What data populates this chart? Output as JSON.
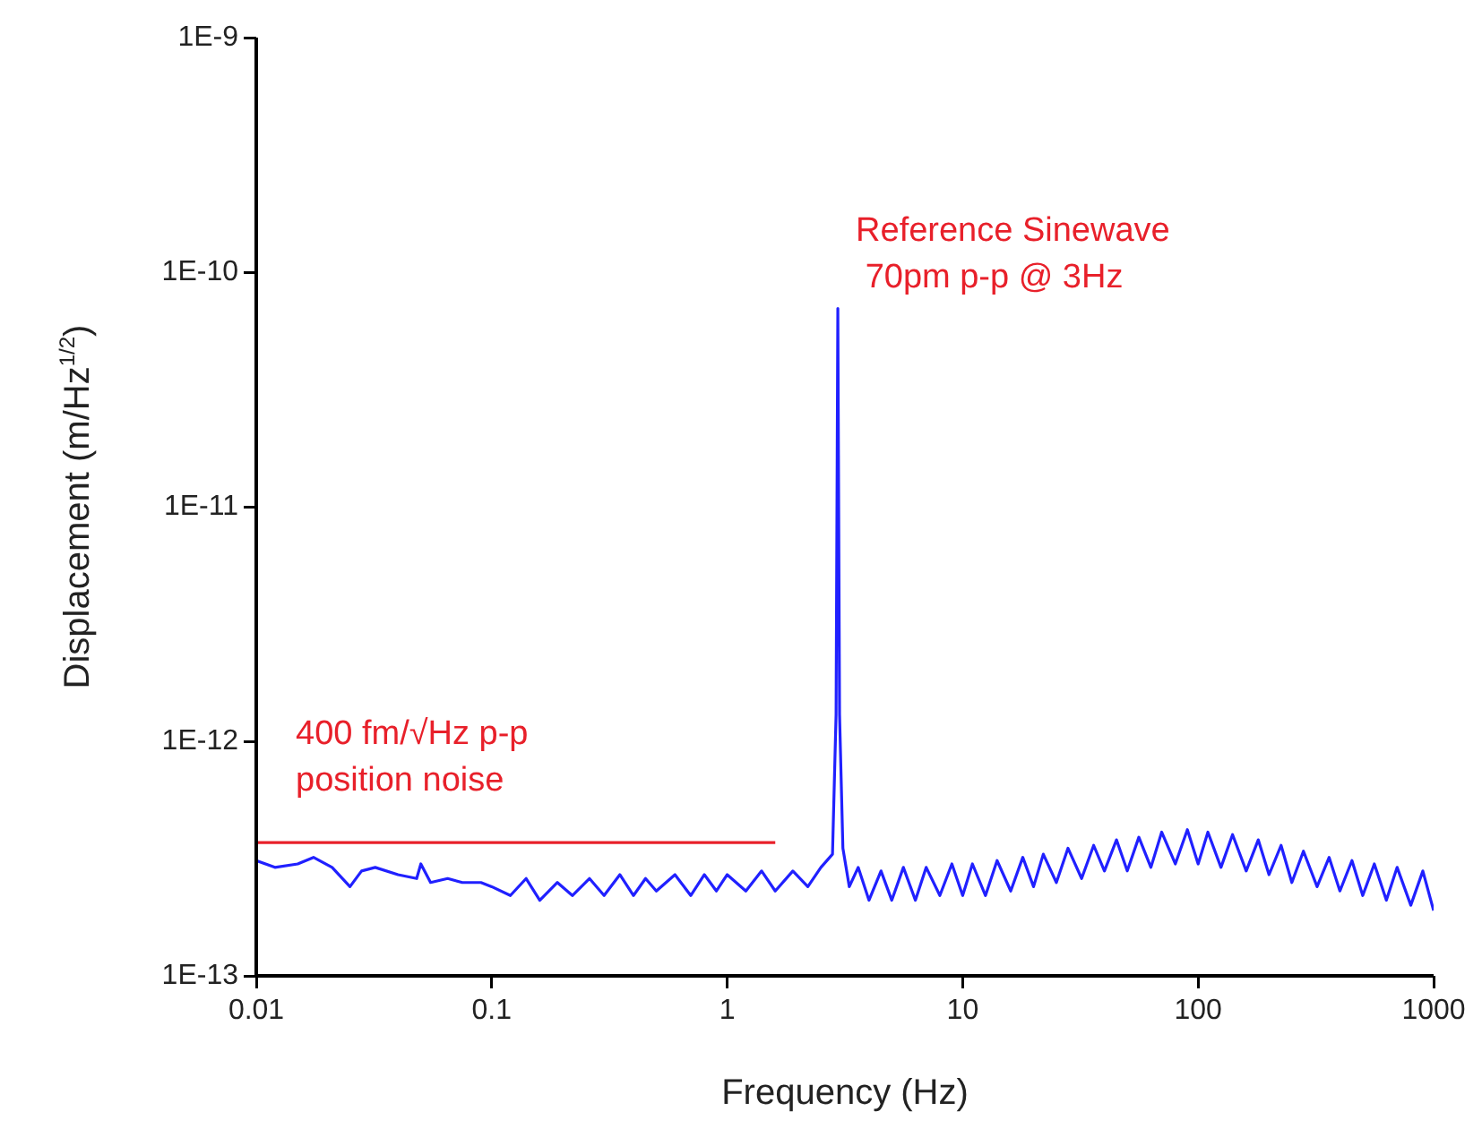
{
  "chart_data": {
    "type": "line",
    "xlabel": "Frequency (Hz)",
    "ylabel": "Displacement (m/Hz$^{1/2}$)",
    "log": "xy",
    "grid": false,
    "xlim": [
      0.01,
      1000
    ],
    "xticks": [
      0.01,
      0.1,
      1,
      10,
      100,
      1000
    ],
    "ylim": [
      1e-13,
      1e-09
    ],
    "yticks": [
      {
        "value": 1e-13,
        "label": "1E-13"
      },
      {
        "value": 1e-12,
        "label": "1E-12"
      },
      {
        "value": 1e-11,
        "label": "1E-11"
      },
      {
        "value": 1e-10,
        "label": "1E-10"
      },
      {
        "value": 1e-09,
        "label": "1E-9"
      }
    ],
    "series": [
      {
        "type": "line",
        "color": "#2020ff",
        "x": [
          0.01,
          0.012,
          0.015,
          0.0175,
          0.021,
          0.025,
          0.028,
          0.032,
          0.04,
          0.048,
          0.05,
          0.055,
          0.065,
          0.075,
          0.09,
          0.1,
          0.12,
          0.14,
          0.16,
          0.19,
          0.22,
          0.26,
          0.3,
          0.35,
          0.4,
          0.45,
          0.5,
          0.6,
          0.7,
          0.8,
          0.9,
          1,
          1.2,
          1.4,
          1.6,
          1.9,
          2.2,
          2.5,
          2.8,
          2.9,
          2.95,
          3,
          3.1,
          3.3,
          3.6,
          4,
          4.5,
          5,
          5.6,
          6.3,
          7,
          8,
          9,
          10,
          11,
          12.5,
          14,
          16,
          18,
          20,
          22,
          25,
          28,
          32,
          36,
          40,
          45,
          50,
          56,
          63,
          70,
          80,
          90,
          100,
          110,
          125,
          140,
          160,
          180,
          200,
          225,
          250,
          280,
          320,
          360,
          400,
          450,
          500,
          560,
          630,
          700,
          800,
          900,
          1000
        ],
        "values": [
          3.1e-13,
          2.9e-13,
          3e-13,
          3.2e-13,
          2.9e-13,
          2.4e-13,
          2.8e-13,
          2.9e-13,
          2.7e-13,
          2.6e-13,
          3e-13,
          2.5e-13,
          2.6e-13,
          2.5e-13,
          2.5e-13,
          2.4e-13,
          2.2e-13,
          2.6e-13,
          2.1e-13,
          2.5e-13,
          2.2e-13,
          2.6e-13,
          2.2e-13,
          2.7e-13,
          2.2e-13,
          2.6e-13,
          2.3e-13,
          2.7e-13,
          2.2e-13,
          2.7e-13,
          2.3e-13,
          2.7e-13,
          2.3e-13,
          2.8e-13,
          2.3e-13,
          2.8e-13,
          2.4e-13,
          2.9e-13,
          3.3e-13,
          1.3e-12,
          7e-11,
          1.3e-12,
          3.5e-13,
          2.4e-13,
          2.9e-13,
          2.1e-13,
          2.8e-13,
          2.1e-13,
          2.9e-13,
          2.1e-13,
          2.9e-13,
          2.2e-13,
          3e-13,
          2.2e-13,
          3e-13,
          2.2e-13,
          3.1e-13,
          2.3e-13,
          3.2e-13,
          2.4e-13,
          3.3e-13,
          2.5e-13,
          3.5e-13,
          2.6e-13,
          3.6e-13,
          2.8e-13,
          3.8e-13,
          2.8e-13,
          3.9e-13,
          2.9e-13,
          4.1e-13,
          3e-13,
          4.2e-13,
          3e-13,
          4.1e-13,
          2.9e-13,
          4e-13,
          2.8e-13,
          3.8e-13,
          2.7e-13,
          3.6e-13,
          2.5e-13,
          3.4e-13,
          2.4e-13,
          3.2e-13,
          2.3e-13,
          3.1e-13,
          2.2e-13,
          3e-13,
          2.1e-13,
          2.9e-13,
          2e-13,
          2.8e-13,
          1.9e-13
        ]
      },
      {
        "type": "line",
        "color": "#e8202a",
        "x": [
          0.01,
          1.6
        ],
        "values": [
          3.7e-13,
          3.7e-13
        ]
      }
    ],
    "annotations": [
      {
        "text": "Reference Sinewave\n 70pm p-p @ 3Hz",
        "x": 2.95,
        "y": 7e-11
      },
      {
        "text": "400 fm/√Hz p-p\nposition noise",
        "x": 0.01,
        "y": 3.7e-13
      }
    ]
  }
}
